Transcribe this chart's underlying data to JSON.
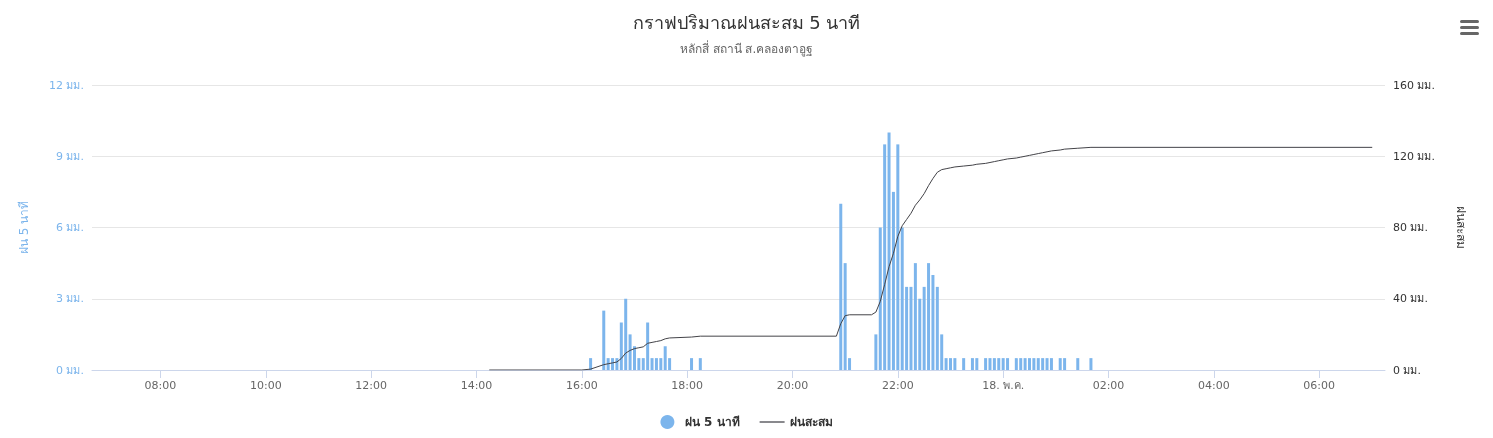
{
  "chart_data": {
    "type": "bar",
    "title": "กราฟปริมาณฝนสะสม 5 นาที",
    "subtitle": "หลักสี่ สถานี ส.คลองตาอูฐ",
    "ylabel": "ฝน 5 นาที",
    "y2label": "ฝนสะสม",
    "xlim": [
      "--05-17T06:42",
      "--05-18T07:15"
    ],
    "xticks": [
      {
        "value": "--05-17T08:00",
        "label": "08:00"
      },
      {
        "value": "--05-17T10:00",
        "label": "10:00"
      },
      {
        "value": "--05-17T12:00",
        "label": "12:00"
      },
      {
        "value": "--05-17T14:00",
        "label": "14:00"
      },
      {
        "value": "--05-17T16:00",
        "label": "16:00"
      },
      {
        "value": "--05-17T18:00",
        "label": "18:00"
      },
      {
        "value": "--05-17T20:00",
        "label": "20:00"
      },
      {
        "value": "--05-17T22:00",
        "label": "22:00"
      },
      {
        "value": "--05-18T00:00",
        "label": "18. พ.ค."
      },
      {
        "value": "--05-18T02:00",
        "label": "02:00"
      },
      {
        "value": "--05-18T04:00",
        "label": "04:00"
      },
      {
        "value": "--05-18T06:00",
        "label": "06:00"
      }
    ],
    "ylim": [
      0,
      12
    ],
    "yticks": [
      {
        "value": 0,
        "label": "0 มม."
      },
      {
        "value": 3,
        "label": "3 มม."
      },
      {
        "value": 6,
        "label": "6 มม."
      },
      {
        "value": 9,
        "label": "9 มม."
      },
      {
        "value": 12,
        "label": "12 มม."
      }
    ],
    "y2lim": [
      0,
      160
    ],
    "y2ticks": [
      {
        "value": 0,
        "label": "0 มม."
      },
      {
        "value": 40,
        "label": "40 มม."
      },
      {
        "value": 80,
        "label": "80 มม."
      },
      {
        "value": 120,
        "label": "120 มม."
      },
      {
        "value": 160,
        "label": "160 มม."
      }
    ],
    "grid": "y",
    "legend": "bottom",
    "marker": "none",
    "series": [
      {
        "name": "ฝน 5 นาที",
        "color": "#7cb5ec",
        "x": [
          "--05-17T16:10",
          "--05-17T16:25",
          "--05-17T16:30",
          "--05-17T16:35",
          "--05-17T16:40",
          "--05-17T16:45",
          "--05-17T16:50",
          "--05-17T16:55",
          "--05-17T17:00",
          "--05-17T17:05",
          "--05-17T17:10",
          "--05-17T17:15",
          "--05-17T17:20",
          "--05-17T17:25",
          "--05-17T17:30",
          "--05-17T17:35",
          "--05-17T17:40",
          "--05-17T18:05",
          "--05-17T18:15",
          "--05-17T20:55",
          "--05-17T21:00",
          "--05-17T21:05",
          "--05-17T21:35",
          "--05-17T21:40",
          "--05-17T21:45",
          "--05-17T21:50",
          "--05-17T21:55",
          "--05-17T22:00",
          "--05-17T22:05",
          "--05-17T22:10",
          "--05-17T22:15",
          "--05-17T22:20",
          "--05-17T22:25",
          "--05-17T22:30",
          "--05-17T22:35",
          "--05-17T22:40",
          "--05-17T22:45",
          "--05-17T22:50",
          "--05-17T22:55",
          "--05-17T23:00",
          "--05-17T23:05",
          "--05-17T23:15",
          "--05-17T23:25",
          "--05-17T23:30",
          "--05-17T23:40",
          "--05-17T23:45",
          "--05-17T23:50",
          "--05-17T23:55",
          "--05-18T00:00",
          "--05-18T00:05",
          "--05-18T00:15",
          "--05-18T00:20",
          "--05-18T00:25",
          "--05-18T00:30",
          "--05-18T00:35",
          "--05-18T00:40",
          "--05-18T00:45",
          "--05-18T00:50",
          "--05-18T00:55",
          "--05-18T01:05",
          "--05-18T01:10",
          "--05-18T01:25",
          "--05-18T01:40"
        ],
        "values": [
          0.5,
          2.5,
          0.5,
          0.5,
          0.5,
          2,
          3,
          1.5,
          1,
          0.5,
          0.5,
          2,
          0.5,
          0.5,
          0.5,
          1,
          0.5,
          0.5,
          0.5,
          7,
          4.5,
          0.5,
          1.5,
          6,
          9.5,
          10,
          7.5,
          9.5,
          6,
          3.5,
          3.5,
          4.5,
          3,
          3.5,
          4.5,
          4,
          3.5,
          1.5,
          0.5,
          0.5,
          0.5,
          0.5,
          0.5,
          0.5,
          0.5,
          0.5,
          0.5,
          0.5,
          0.5,
          0.5,
          0.5,
          0.5,
          0.5,
          0.5,
          0.5,
          0.5,
          0.5,
          0.5,
          0.5,
          0.5,
          0.5,
          0.5,
          0.5
        ]
      },
      {
        "name": "ฝนสะสม",
        "type": "line",
        "axis": "y2",
        "color": "#434348",
        "line_style": "solid",
        "x": [
          "--05-17T14:15",
          "--05-17T16:00",
          "--05-17T16:10",
          "--05-17T16:25",
          "--05-17T16:30",
          "--05-17T16:35",
          "--05-17T16:40",
          "--05-17T16:45",
          "--05-17T16:50",
          "--05-17T16:55",
          "--05-17T17:00",
          "--05-17T17:05",
          "--05-17T17:10",
          "--05-17T17:15",
          "--05-17T17:20",
          "--05-17T17:25",
          "--05-17T17:30",
          "--05-17T17:35",
          "--05-17T17:40",
          "--05-17T18:05",
          "--05-17T18:15",
          "--05-17T20:50",
          "--05-17T20:55",
          "--05-17T21:00",
          "--05-17T21:05",
          "--05-17T21:30",
          "--05-17T21:35",
          "--05-17T21:40",
          "--05-17T21:45",
          "--05-17T21:50",
          "--05-17T21:55",
          "--05-17T22:00",
          "--05-17T22:05",
          "--05-17T22:10",
          "--05-17T22:15",
          "--05-17T22:20",
          "--05-17T22:25",
          "--05-17T22:30",
          "--05-17T22:35",
          "--05-17T22:40",
          "--05-17T22:45",
          "--05-17T22:50",
          "--05-17T22:55",
          "--05-17T23:00",
          "--05-17T23:05",
          "--05-17T23:15",
          "--05-17T23:25",
          "--05-17T23:30",
          "--05-17T23:40",
          "--05-17T23:45",
          "--05-17T23:50",
          "--05-17T23:55",
          "--05-18T00:00",
          "--05-18T00:05",
          "--05-18T00:15",
          "--05-18T00:20",
          "--05-18T00:25",
          "--05-18T00:30",
          "--05-18T00:35",
          "--05-18T00:40",
          "--05-18T00:45",
          "--05-18T00:50",
          "--05-18T00:55",
          "--05-18T01:05",
          "--05-18T01:10",
          "--05-18T01:25",
          "--05-18T01:40",
          "--05-18T07:00"
        ],
        "values": [
          0,
          0,
          0.5,
          3,
          3.5,
          4,
          4.5,
          6.5,
          9.5,
          11,
          12,
          12.5,
          13,
          15,
          15.5,
          16,
          16.5,
          17.5,
          18,
          18.5,
          19,
          19,
          26,
          30.5,
          31,
          31,
          32.5,
          38.5,
          48,
          58,
          65.5,
          75,
          81,
          84.5,
          88,
          92.5,
          95.5,
          99,
          103.5,
          107.5,
          111,
          112.5,
          113,
          113.5,
          114,
          114.5,
          115,
          115.5,
          116,
          116.5,
          117,
          117.5,
          118,
          118.5,
          119,
          119.5,
          120,
          120.5,
          121,
          121.5,
          122,
          122.5,
          123,
          123.5,
          124,
          124.5,
          125,
          125
        ]
      }
    ]
  }
}
